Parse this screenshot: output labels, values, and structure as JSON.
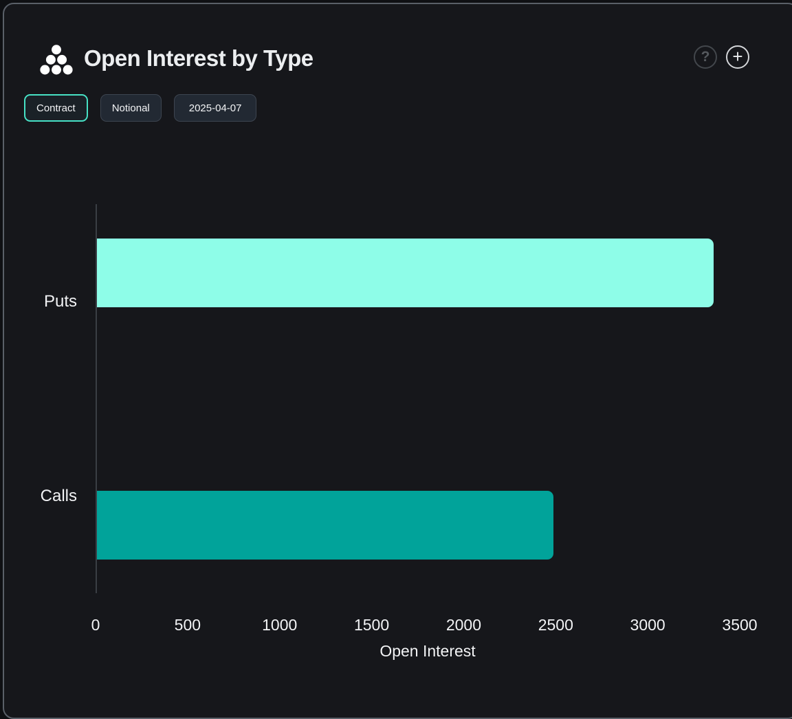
{
  "header": {
    "title": "Open Interest by Type",
    "help_glyph": "?",
    "plus_glyph": "+"
  },
  "toolbar": {
    "buttons": [
      {
        "label": "Contract",
        "active": true
      },
      {
        "label": "Notional",
        "active": false
      },
      {
        "label": "2025-04-07",
        "active": false
      }
    ]
  },
  "chart_data": {
    "type": "bar",
    "orientation": "horizontal",
    "title": "Open Interest by Type",
    "xlabel": "Open Interest",
    "ylabel": "",
    "categories": [
      "Puts",
      "Calls"
    ],
    "series": [
      {
        "name": "Puts",
        "value": 3350,
        "color": "#8EFDE8"
      },
      {
        "name": "Calls",
        "value": 2480,
        "color": "#01A39A"
      }
    ],
    "xlim": [
      0,
      3500
    ],
    "xticks": [
      0,
      500,
      1000,
      1500,
      2000,
      2500,
      3000,
      3500
    ],
    "grid": false,
    "legend": false
  },
  "colors": {
    "card_background": "#16171B",
    "card_border": "#5A6068",
    "active_pill_border": "#47E2C6",
    "axis_line": "#3A3E44",
    "text": "#F2F3F5"
  }
}
